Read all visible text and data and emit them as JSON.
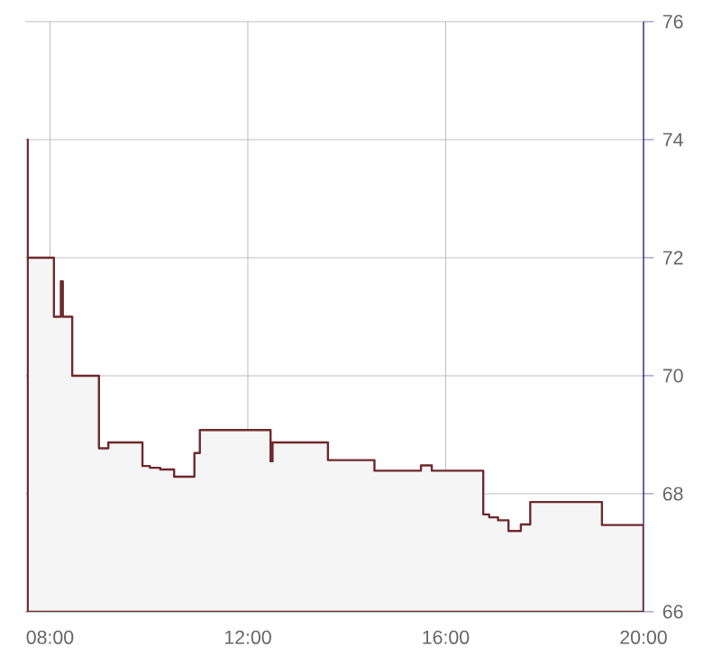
{
  "chart_data": {
    "type": "area",
    "color": "#6e2a2e",
    "x": [
      7.55,
      7.55,
      8.08,
      8.08,
      8.22,
      8.22,
      8.26,
      8.26,
      8.45,
      8.45,
      8.99,
      8.99,
      9.18,
      9.18,
      9.87,
      9.87,
      10.02,
      10.02,
      10.23,
      10.23,
      10.51,
      10.51,
      10.92,
      10.92,
      11.03,
      11.03,
      12.46,
      12.46,
      12.5,
      12.5,
      13.62,
      13.62,
      14.56,
      14.56,
      15.5,
      15.5,
      15.72,
      15.72,
      16.76,
      16.76,
      16.88,
      16.88,
      17.06,
      17.06,
      17.27,
      17.27,
      17.52,
      17.52,
      17.71,
      17.71,
      19.16,
      19.16,
      20
    ],
    "values": [
      74,
      72,
      72,
      71,
      71,
      71.6,
      71.6,
      71,
      71,
      70,
      70,
      68.77,
      68.77,
      68.87,
      68.87,
      68.47,
      68.47,
      68.44,
      68.44,
      68.41,
      68.41,
      68.29,
      68.29,
      68.69,
      68.69,
      69.08,
      69.08,
      68.55,
      68.55,
      68.87,
      68.87,
      68.57,
      68.57,
      68.39,
      68.39,
      68.48,
      68.48,
      68.39,
      68.39,
      67.65,
      67.65,
      67.6,
      67.6,
      67.55,
      67.55,
      67.37,
      67.37,
      67.48,
      67.48,
      67.86,
      67.86,
      67.47,
      67.47
    ],
    "xlim": [
      7.5,
      20
    ],
    "ylim": [
      66,
      76
    ],
    "xticks": [
      {
        "value": 8,
        "label": "08:00"
      },
      {
        "value": 12,
        "label": "12:00"
      },
      {
        "value": 16,
        "label": "16:00"
      },
      {
        "value": 20,
        "label": "20:00"
      }
    ],
    "yticks": [
      66,
      68,
      70,
      72,
      74,
      76
    ],
    "grid": true
  }
}
